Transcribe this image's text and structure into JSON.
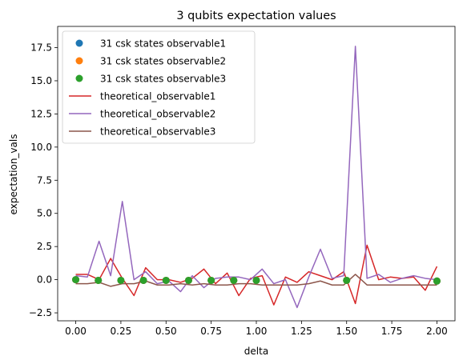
{
  "chart_data": {
    "type": "line",
    "title": "3 qubits expectation values",
    "xlabel": "delta",
    "ylabel": "expectation_vals",
    "xlim": [
      -0.1,
      2.1
    ],
    "ylim": [
      -3.1,
      19.1
    ],
    "xticks": [
      0.0,
      0.25,
      0.5,
      0.75,
      1.0,
      1.25,
      1.5,
      1.75,
      2.0
    ],
    "xtick_labels": [
      "0.00",
      "0.25",
      "0.50",
      "0.75",
      "1.00",
      "1.25",
      "1.50",
      "1.75",
      "2.00"
    ],
    "yticks": [
      -2.5,
      0.0,
      2.5,
      5.0,
      7.5,
      10.0,
      12.5,
      15.0,
      17.5
    ],
    "ytick_labels": [
      "−2.5",
      "0.0",
      "2.5",
      "5.0",
      "7.5",
      "10.0",
      "12.5",
      "15.0",
      "17.5"
    ],
    "grid": false,
    "legend_position": "upper-left",
    "scatter_series": [
      {
        "name": "31 csk states observable1",
        "color": "#1f77b4",
        "x": [
          0.0,
          0.125,
          0.25,
          0.375,
          0.5,
          0.625,
          0.75,
          0.875,
          1.0,
          1.5,
          2.0
        ],
        "y": [
          0.0,
          -0.05,
          -0.05,
          -0.05,
          -0.05,
          -0.05,
          -0.05,
          -0.05,
          -0.05,
          -0.05,
          -0.1
        ]
      },
      {
        "name": "31 csk states observable2",
        "color": "#ff7f0e",
        "x": [
          0.0,
          0.125,
          0.25,
          0.375,
          0.5,
          0.625,
          0.75,
          0.875,
          1.0,
          1.5,
          2.0
        ],
        "y": [
          0.0,
          -0.05,
          -0.05,
          -0.05,
          -0.05,
          -0.05,
          -0.05,
          -0.05,
          -0.05,
          -0.05,
          -0.1
        ]
      },
      {
        "name": "31 csk states observable3",
        "color": "#2ca02c",
        "x": [
          0.0,
          0.125,
          0.25,
          0.375,
          0.5,
          0.625,
          0.75,
          0.875,
          1.0,
          1.5,
          2.0
        ],
        "y": [
          0.0,
          -0.05,
          -0.05,
          -0.05,
          -0.05,
          -0.05,
          -0.05,
          -0.05,
          -0.05,
          -0.05,
          -0.1
        ]
      }
    ],
    "line_series": [
      {
        "name": "theoretical_observable1",
        "color": "#d62728",
        "x": [
          0.0,
          0.0645,
          0.129,
          0.1935,
          0.258,
          0.3226,
          0.3871,
          0.4516,
          0.5161,
          0.5806,
          0.6452,
          0.7097,
          0.7742,
          0.8387,
          0.9032,
          0.9677,
          1.0323,
          1.0968,
          1.1613,
          1.2258,
          1.2903,
          1.3548,
          1.4194,
          1.4839,
          1.5484,
          1.6129,
          1.6774,
          1.7419,
          1.8065,
          1.871,
          1.9355,
          2.0
        ],
        "y": [
          0.4,
          0.4,
          0.0,
          1.6,
          0.1,
          -1.2,
          0.9,
          0.0,
          0.0,
          -0.2,
          0.1,
          0.8,
          -0.3,
          0.5,
          -1.2,
          0.1,
          0.3,
          -1.9,
          0.2,
          -0.2,
          0.6,
          0.3,
          0.0,
          0.6,
          -1.8,
          2.6,
          0.0,
          0.2,
          0.1,
          0.2,
          -0.8,
          1.0
        ]
      },
      {
        "name": "theoretical_observable2",
        "color": "#9467bd",
        "x": [
          0.0,
          0.0645,
          0.129,
          0.1935,
          0.258,
          0.3226,
          0.3871,
          0.4516,
          0.5161,
          0.5806,
          0.6452,
          0.7097,
          0.7742,
          0.8387,
          0.9032,
          0.9677,
          1.0323,
          1.0968,
          1.1613,
          1.2258,
          1.2903,
          1.3548,
          1.4194,
          1.4839,
          1.5484,
          1.6129,
          1.6774,
          1.7419,
          1.8065,
          1.871,
          1.9355,
          2.0
        ],
        "y": [
          0.3,
          0.2,
          2.9,
          0.3,
          5.9,
          0.0,
          0.6,
          -0.3,
          -0.1,
          -0.9,
          0.3,
          -0.6,
          0.1,
          0.2,
          0.2,
          0.0,
          0.8,
          -0.3,
          0.0,
          -2.1,
          0.2,
          2.3,
          0.1,
          0.3,
          17.6,
          0.1,
          0.4,
          -0.2,
          0.1,
          0.3,
          0.1,
          0.0
        ]
      },
      {
        "name": "theoretical_observable3",
        "color": "#8c564b",
        "x": [
          0.0,
          0.0645,
          0.129,
          0.1935,
          0.258,
          0.3226,
          0.3871,
          0.4516,
          0.5161,
          0.5806,
          0.6452,
          0.7097,
          0.7742,
          0.8387,
          0.9032,
          0.9677,
          1.0323,
          1.0968,
          1.1613,
          1.2258,
          1.2903,
          1.3548,
          1.4194,
          1.4839,
          1.5484,
          1.6129,
          1.6774,
          1.7419,
          1.8065,
          1.871,
          1.9355,
          2.0
        ],
        "y": [
          -0.3,
          -0.3,
          -0.2,
          -0.5,
          -0.3,
          -0.3,
          -0.1,
          -0.4,
          -0.4,
          -0.3,
          -0.4,
          -0.3,
          -0.4,
          -0.4,
          -0.3,
          -0.3,
          -0.4,
          -0.4,
          -0.4,
          -0.4,
          -0.3,
          -0.1,
          -0.4,
          -0.4,
          0.4,
          -0.4,
          -0.4,
          -0.4,
          -0.4,
          -0.4,
          -0.4,
          -0.4
        ]
      }
    ]
  }
}
